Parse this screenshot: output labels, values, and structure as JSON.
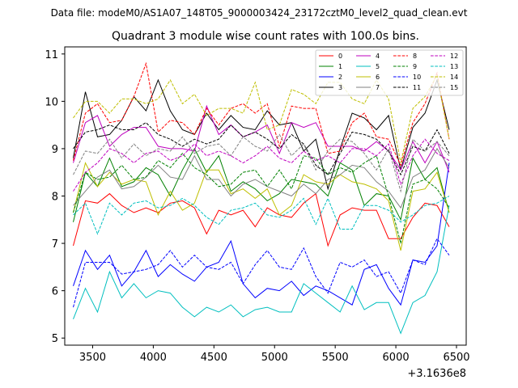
{
  "header": {
    "data_file": "Data file: modeM0/AS1A07_148T05_9000003424_23172cztM0_level2_quad_clean.evt"
  },
  "chart_data": {
    "type": "line",
    "title": "Quadrant 3 module wise count rates with 100.0s bins.",
    "xlabel": "",
    "ylabel": "",
    "x_offset_label": "+3.1636e8",
    "xlim": [
      3270,
      6580
    ],
    "ylim": [
      4.85,
      11.15
    ],
    "xticks": [
      3500,
      4000,
      4500,
      5000,
      5500,
      6000,
      6500
    ],
    "yticks": [
      5,
      6,
      7,
      8,
      9,
      10,
      11
    ],
    "grid": false,
    "legend_position": "top-right",
    "legend_columns": 4,
    "x": [
      3340,
      3440,
      3540,
      3640,
      3740,
      3840,
      3940,
      4040,
      4140,
      4240,
      4340,
      4440,
      4540,
      4640,
      4740,
      4840,
      4940,
      5040,
      5140,
      5240,
      5340,
      5440,
      5540,
      5640,
      5740,
      5840,
      5940,
      6040,
      6140,
      6240,
      6340,
      6440
    ],
    "series": [
      {
        "name": "0",
        "color": "#ff0000",
        "dash": "solid",
        "values": [
          6.95,
          7.9,
          7.85,
          8.05,
          7.8,
          7.65,
          7.75,
          7.65,
          7.85,
          7.9,
          7.75,
          7.2,
          7.7,
          7.6,
          7.7,
          7.35,
          7.75,
          7.6,
          7.55,
          7.85,
          8.05,
          6.95,
          7.6,
          7.75,
          7.7,
          7.7,
          7.1,
          7.1,
          7.55,
          7.85,
          7.8,
          7.35
        ]
      },
      {
        "name": "1",
        "color": "#008000",
        "dash": "solid",
        "values": [
          7.45,
          8.5,
          8.2,
          8.8,
          8.2,
          8.3,
          8.6,
          8.45,
          8.0,
          8.55,
          9.0,
          8.5,
          8.85,
          8.1,
          8.3,
          8.15,
          7.9,
          8.05,
          8.35,
          8.3,
          8.25,
          8.0,
          8.7,
          8.55,
          7.8,
          8.05,
          8.0,
          7.5,
          8.8,
          8.35,
          8.6,
          7.65
        ]
      },
      {
        "name": "2",
        "color": "#0000ff",
        "dash": "solid",
        "values": [
          6.1,
          6.85,
          6.45,
          6.75,
          6.1,
          6.4,
          6.85,
          6.3,
          6.55,
          6.35,
          6.2,
          6.5,
          6.6,
          7.05,
          6.15,
          5.85,
          6.05,
          6.0,
          6.2,
          5.9,
          6.1,
          6.0,
          5.85,
          5.7,
          6.45,
          6.55,
          6.05,
          5.7,
          6.65,
          6.6,
          6.95,
          8.7
        ]
      },
      {
        "name": "3",
        "color": "#000000",
        "dash": "solid",
        "values": [
          8.8,
          10.2,
          9.25,
          9.3,
          9.6,
          10.1,
          9.8,
          10.45,
          9.8,
          9.4,
          9.3,
          9.75,
          9.4,
          9.7,
          9.45,
          9.4,
          9.8,
          9.5,
          9.55,
          8.95,
          9.2,
          8.15,
          9.0,
          9.75,
          9.65,
          9.4,
          9.7,
          8.55,
          9.45,
          9.75,
          10.45,
          9.4
        ]
      },
      {
        "name": "4",
        "color": "#bf00bf",
        "dash": "solid",
        "values": [
          8.7,
          9.55,
          9.7,
          9.05,
          9.3,
          9.45,
          9.45,
          9.05,
          9.0,
          9.0,
          8.95,
          9.9,
          9.3,
          9.5,
          9.25,
          9.35,
          9.5,
          8.9,
          9.55,
          9.45,
          9.55,
          9.05,
          9.05,
          9.05,
          8.95,
          9.15,
          8.95,
          8.55,
          9.15,
          8.7,
          9.15,
          8.5
        ]
      },
      {
        "name": "5",
        "color": "#00bfbf",
        "dash": "solid",
        "values": [
          5.4,
          6.05,
          5.55,
          6.4,
          5.85,
          6.15,
          5.85,
          6.0,
          5.95,
          5.65,
          5.45,
          5.65,
          5.55,
          5.7,
          5.45,
          5.6,
          5.65,
          5.55,
          5.55,
          6.15,
          5.95,
          5.75,
          5.55,
          6.1,
          5.6,
          5.75,
          5.75,
          5.1,
          5.75,
          5.9,
          6.4,
          7.8
        ]
      },
      {
        "name": "6",
        "color": "#bfbf00",
        "dash": "solid",
        "values": [
          7.65,
          8.7,
          8.2,
          8.5,
          8.25,
          8.35,
          8.3,
          7.6,
          8.1,
          7.7,
          7.85,
          8.55,
          8.55,
          8.05,
          8.15,
          7.95,
          8.15,
          7.6,
          7.8,
          8.45,
          8.3,
          8.25,
          8.45,
          8.3,
          8.25,
          8.15,
          7.9,
          6.85,
          8.1,
          8.15,
          8.5,
          7.65
        ]
      },
      {
        "name": "7",
        "color": "#808080",
        "dash": "solid",
        "values": [
          7.8,
          8.1,
          8.4,
          8.55,
          8.15,
          8.2,
          8.4,
          8.65,
          8.4,
          8.35,
          8.85,
          8.35,
          8.35,
          8.0,
          8.25,
          8.35,
          8.2,
          8.1,
          8.0,
          8.25,
          8.05,
          8.35,
          8.45,
          8.65,
          8.6,
          8.3,
          8.1,
          7.75,
          8.4,
          8.55,
          9.0,
          8.6
        ]
      },
      {
        "name": "8",
        "color": "#ff0000",
        "dash": "dashed",
        "values": [
          8.75,
          9.75,
          9.95,
          9.55,
          9.6,
          10.1,
          10.8,
          9.35,
          9.6,
          9.55,
          9.3,
          9.85,
          9.5,
          9.85,
          9.95,
          9.75,
          9.95,
          9.05,
          9.9,
          9.85,
          9.85,
          8.9,
          8.95,
          9.55,
          9.75,
          9.25,
          9.2,
          8.65,
          9.55,
          9.95,
          10.6,
          9.2
        ]
      },
      {
        "name": "9",
        "color": "#008000",
        "dash": "dashed",
        "values": [
          7.65,
          8.5,
          8.35,
          8.4,
          8.65,
          8.35,
          8.4,
          8.75,
          8.6,
          8.9,
          8.6,
          8.45,
          8.2,
          8.25,
          8.5,
          8.55,
          8.2,
          8.55,
          8.15,
          8.85,
          8.8,
          8.45,
          8.6,
          8.5,
          8.7,
          8.85,
          8.0,
          7.0,
          8.25,
          8.35,
          8.15,
          7.75
        ]
      },
      {
        "name": "10",
        "color": "#0000ff",
        "dash": "dashed",
        "values": [
          5.65,
          6.6,
          6.6,
          6.6,
          6.35,
          6.4,
          6.45,
          6.55,
          6.85,
          6.5,
          6.75,
          6.5,
          6.45,
          6.6,
          6.15,
          6.55,
          6.85,
          6.5,
          6.45,
          6.9,
          6.3,
          5.95,
          6.6,
          6.5,
          6.65,
          6.3,
          6.4,
          5.95,
          6.65,
          6.55,
          7.1,
          6.75
        ]
      },
      {
        "name": "11",
        "color": "#000000",
        "dash": "dashed",
        "values": [
          9.0,
          9.35,
          9.4,
          9.5,
          9.4,
          9.4,
          9.55,
          9.3,
          9.2,
          9.05,
          9.2,
          9.1,
          9.2,
          9.5,
          9.25,
          9.35,
          9.2,
          9.0,
          9.3,
          9.1,
          8.65,
          8.45,
          8.9,
          9.35,
          9.3,
          9.2,
          8.95,
          8.45,
          9.05,
          8.95,
          9.4,
          8.9
        ]
      },
      {
        "name": "12",
        "color": "#bf00bf",
        "dash": "dashed",
        "values": [
          8.1,
          8.5,
          8.7,
          9.0,
          8.9,
          8.7,
          8.9,
          8.95,
          8.75,
          8.85,
          9.1,
          8.85,
          8.95,
          8.85,
          8.7,
          8.85,
          9.05,
          8.8,
          8.7,
          8.95,
          8.75,
          8.85,
          8.7,
          9.0,
          9.0,
          8.85,
          9.1,
          8.25,
          8.85,
          9.2,
          8.9,
          8.75
        ]
      },
      {
        "name": "13",
        "color": "#00bfbf",
        "dash": "dashed",
        "values": [
          7.6,
          7.85,
          7.2,
          7.85,
          7.6,
          7.85,
          7.9,
          7.75,
          7.8,
          7.95,
          7.8,
          7.55,
          7.4,
          7.7,
          7.75,
          7.85,
          7.6,
          7.55,
          7.7,
          7.95,
          7.4,
          7.95,
          7.3,
          7.3,
          7.8,
          7.8,
          7.7,
          7.45,
          7.6,
          7.8,
          7.85,
          8.0
        ]
      },
      {
        "name": "14",
        "color": "#bfbf00",
        "dash": "dashed",
        "values": [
          9.65,
          10.0,
          10.0,
          9.75,
          10.05,
          10.05,
          9.95,
          10.05,
          10.45,
          9.95,
          10.15,
          9.7,
          9.85,
          9.85,
          9.75,
          10.4,
          9.4,
          9.5,
          10.25,
          10.15,
          9.95,
          10.4,
          10.4,
          10.05,
          9.95,
          10.45,
          10.05,
          8.7,
          9.85,
          10.1,
          10.55,
          9.2
        ]
      },
      {
        "name": "15",
        "color": "#808080",
        "dash": "dashed",
        "values": [
          8.45,
          8.95,
          8.9,
          9.2,
          8.8,
          9.1,
          8.85,
          9.0,
          8.95,
          9.25,
          8.9,
          9.05,
          9.1,
          8.85,
          9.25,
          9.05,
          8.95,
          9.3,
          8.85,
          9.1,
          8.55,
          8.95,
          9.2,
          9.15,
          8.9,
          8.55,
          9.0,
          8.1,
          9.2,
          8.95,
          9.15,
          8.85
        ]
      }
    ]
  }
}
